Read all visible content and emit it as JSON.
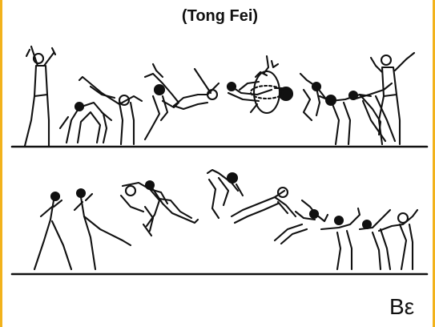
{
  "title": "(Tong Fei)",
  "difficulty_mark": "Bε",
  "colors": {
    "frame_border": "#f2b21c",
    "ink": "#111111",
    "background": "#ffffff"
  }
}
